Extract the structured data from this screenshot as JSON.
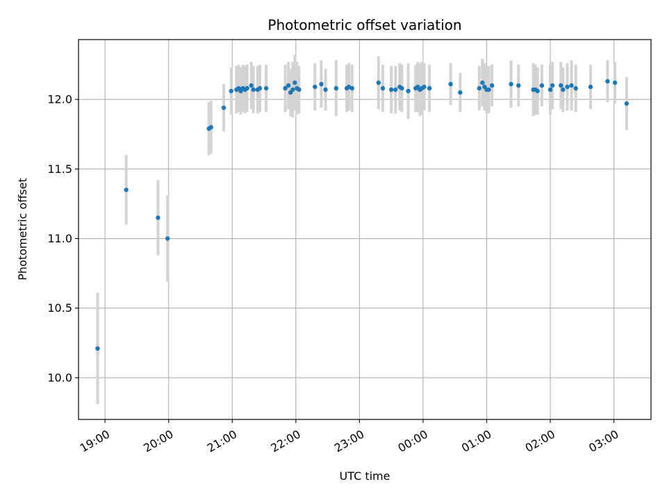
{
  "chart_data": {
    "type": "scatter",
    "title": "Photometric offset variation",
    "xlabel": "UTC time",
    "ylabel": "Photometric offset",
    "grid": true,
    "legend": "none",
    "x_unit": "UTC time",
    "xlim": [
      "18:35",
      "03:35"
    ],
    "ylim": [
      9.7,
      12.43
    ],
    "x_ticks": [
      "19:00",
      "20:00",
      "21:00",
      "22:00",
      "23:00",
      "00:00",
      "01:00",
      "02:00",
      "03:00"
    ],
    "y_ticks": [
      "10.0",
      "10.5",
      "11.0",
      "11.5",
      "12.0"
    ],
    "colors": {
      "point": "#1f77b4",
      "errorbar": "#d3d3d3",
      "grid": "#b0b0b0"
    },
    "series": [
      {
        "x": [
          "18:53",
          "19:20",
          "19:50",
          "19:59",
          "20:38",
          "20:40",
          "20:52",
          "20:59",
          "21:04",
          "21:06",
          "21:08",
          "21:10",
          "21:12",
          "21:14",
          "21:18",
          "21:20",
          "21:24",
          "21:26",
          "21:32",
          "21:50",
          "21:53",
          "21:55",
          "21:57",
          "21:59",
          "22:01",
          "22:03",
          "22:18",
          "22:24",
          "22:28",
          "22:38",
          "22:48",
          "22:50",
          "22:53",
          "23:18",
          "23:22",
          "23:30",
          "23:34",
          "23:38",
          "23:40",
          "23:46",
          "23:53",
          "23:55",
          "23:57",
          "23:59",
          "00:01",
          "00:06",
          "00:26",
          "00:35",
          "00:53",
          "00:56",
          "00:58",
          "01:00",
          "01:02",
          "01:05",
          "01:23",
          "01:30",
          "01:44",
          "01:46",
          "01:48",
          "01:52",
          "02:00",
          "02:02",
          "02:10",
          "02:12",
          "02:16",
          "02:20",
          "02:24",
          "02:38",
          "02:54",
          "03:01",
          "03:12"
        ],
        "y": [
          10.21,
          11.35,
          11.15,
          11.0,
          11.79,
          11.8,
          11.94,
          12.06,
          12.07,
          12.08,
          12.06,
          12.08,
          12.07,
          12.08,
          12.1,
          12.07,
          12.07,
          12.08,
          12.08,
          12.08,
          12.1,
          12.05,
          12.07,
          12.12,
          12.08,
          12.07,
          12.09,
          12.11,
          12.07,
          12.08,
          12.08,
          12.09,
          12.08,
          12.12,
          12.08,
          12.07,
          12.07,
          12.09,
          12.08,
          12.06,
          12.08,
          12.09,
          12.07,
          12.08,
          12.09,
          12.08,
          12.11,
          12.05,
          12.08,
          12.12,
          12.09,
          12.07,
          12.07,
          12.1,
          12.11,
          12.1,
          12.07,
          12.07,
          12.06,
          12.1,
          12.07,
          12.1,
          12.1,
          12.07,
          12.09,
          12.1,
          12.08,
          12.09,
          12.13,
          12.12,
          11.97
        ],
        "err": [
          0.4,
          0.25,
          0.27,
          0.31,
          0.19,
          0.19,
          0.17,
          0.17,
          0.17,
          0.17,
          0.17,
          0.17,
          0.17,
          0.17,
          0.17,
          0.17,
          0.17,
          0.17,
          0.17,
          0.17,
          0.17,
          0.17,
          0.2,
          0.2,
          0.19,
          0.17,
          0.17,
          0.17,
          0.15,
          0.2,
          0.17,
          0.17,
          0.17,
          0.19,
          0.17,
          0.17,
          0.17,
          0.17,
          0.17,
          0.2,
          0.17,
          0.18,
          0.19,
          0.19,
          0.17,
          0.17,
          0.15,
          0.14,
          0.16,
          0.17,
          0.17,
          0.17,
          0.17,
          0.15,
          0.17,
          0.15,
          0.19,
          0.18,
          0.17,
          0.15,
          0.18,
          0.17,
          0.17,
          0.16,
          0.17,
          0.18,
          0.17,
          0.16,
          0.15,
          0.15,
          0.19
        ]
      }
    ]
  }
}
